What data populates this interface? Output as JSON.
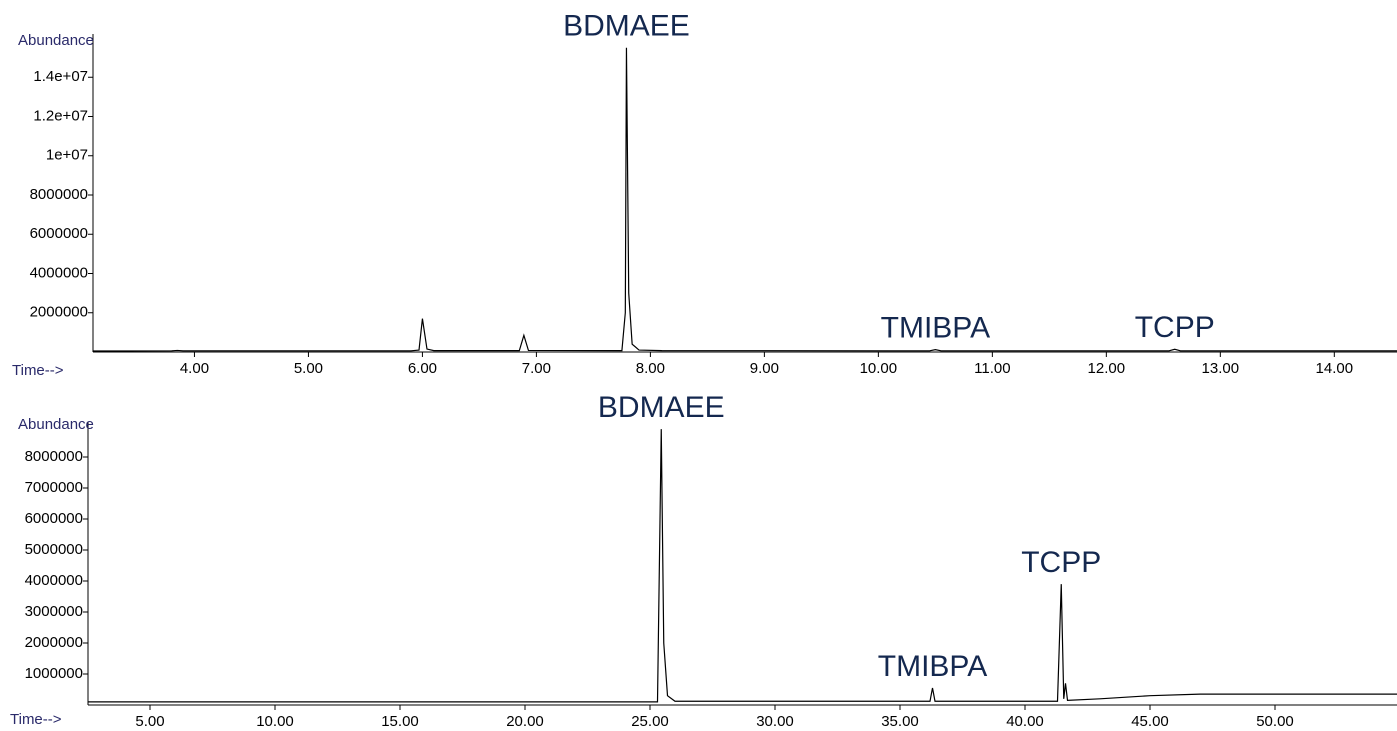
{
  "chart_data": [
    {
      "type": "line",
      "xlabel": "Time-->",
      "ylabel": "Abundance",
      "color": "#000000",
      "xlim": [
        3.11,
        14.55
      ],
      "ylim": [
        0,
        16000000
      ],
      "xticks": [
        {
          "value": 4,
          "label": "4.00"
        },
        {
          "value": 5,
          "label": "5.00"
        },
        {
          "value": 6,
          "label": "6.00"
        },
        {
          "value": 7,
          "label": "7.00"
        },
        {
          "value": 8,
          "label": "8.00"
        },
        {
          "value": 9,
          "label": "9.00"
        },
        {
          "value": 10,
          "label": "10.00"
        },
        {
          "value": 11,
          "label": "11.00"
        },
        {
          "value": 12,
          "label": "12.00"
        },
        {
          "value": 13,
          "label": "13.00"
        },
        {
          "value": 14,
          "label": "14.00"
        }
      ],
      "yticks": [
        2000000,
        4000000,
        6000000,
        8000000,
        {
          "value": 10000000,
          "label": "1e+07"
        },
        {
          "value": 12000000,
          "label": "1.2e+07"
        },
        {
          "value": 14000000,
          "label": "1.4e+07"
        }
      ],
      "x": [
        3.11,
        3.8,
        3.85,
        3.9,
        5.9,
        5.97,
        6.0,
        6.04,
        6.1,
        6.85,
        6.89,
        6.93,
        7.75,
        7.78,
        7.79,
        7.81,
        7.84,
        7.9,
        8.1,
        10.45,
        10.5,
        10.55,
        12.55,
        12.6,
        12.65,
        14.55
      ],
      "values": [
        50000,
        60000,
        80000,
        60000,
        60000,
        100000,
        1700000,
        150000,
        70000,
        70000,
        850000,
        80000,
        70000,
        2000000,
        15500000,
        3000000,
        400000,
        100000,
        70000,
        60000,
        120000,
        60000,
        60000,
        140000,
        60000,
        60000
      ],
      "annotations": [
        {
          "text": "BDMAEE",
          "x": 7.79
        },
        {
          "text": "TMIBPA",
          "x": 10.5
        },
        {
          "text": "TCPP",
          "x": 12.6
        }
      ]
    },
    {
      "type": "line",
      "xlabel": "Time-->",
      "ylabel": "Abundance",
      "color": "#000000",
      "xlim": [
        2.52,
        54.88
      ],
      "ylim": [
        0,
        9000000
      ],
      "xticks": [
        {
          "value": 5,
          "label": "5.00"
        },
        {
          "value": 10,
          "label": "10.00"
        },
        {
          "value": 15,
          "label": "15.00"
        },
        {
          "value": 20,
          "label": "20.00"
        },
        {
          "value": 25,
          "label": "25.00"
        },
        {
          "value": 30,
          "label": "30.00"
        },
        {
          "value": 35,
          "label": "35.00"
        },
        {
          "value": 40,
          "label": "40.00"
        },
        {
          "value": 45,
          "label": "45.00"
        },
        {
          "value": 50,
          "label": "50.00"
        }
      ],
      "yticks": [
        1000000,
        2000000,
        3000000,
        4000000,
        5000000,
        6000000,
        7000000,
        8000000
      ],
      "x": [
        2.52,
        25.3,
        25.45,
        25.55,
        25.7,
        26.0,
        36.2,
        36.3,
        36.4,
        41.3,
        41.45,
        41.55,
        41.62,
        41.7,
        43.0,
        45.0,
        47.0,
        54.88
      ],
      "values": [
        100000,
        100000,
        8900000,
        2000000,
        300000,
        120000,
        120000,
        550000,
        120000,
        120000,
        3900000,
        200000,
        700000,
        150000,
        200000,
        300000,
        350000,
        350000
      ],
      "annotations": [
        {
          "text": "BDMAEE",
          "x": 25.45
        },
        {
          "text": "TMIBPA",
          "x": 36.3
        },
        {
          "text": "TCPP",
          "x": 41.45
        }
      ]
    }
  ]
}
